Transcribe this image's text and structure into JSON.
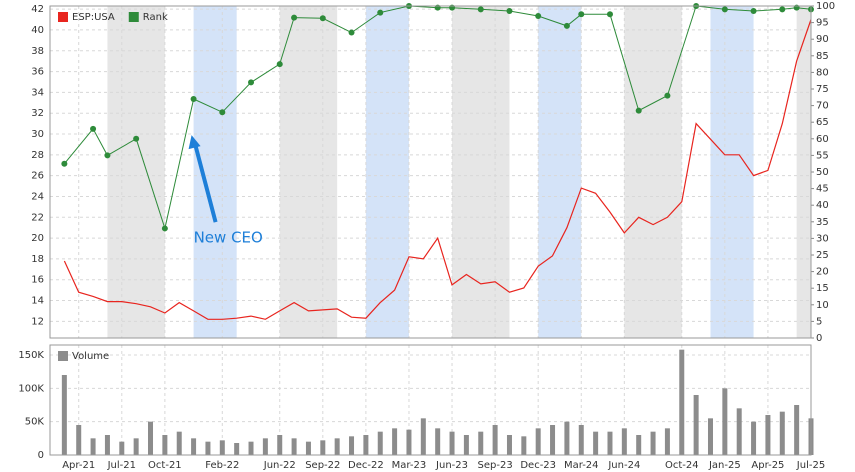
{
  "chart_data": [
    {
      "type": "line",
      "xlim": [
        "2021-02",
        "2025-07"
      ],
      "ylim": [
        10.4,
        42.3
      ],
      "yticks": [
        12,
        14,
        16,
        18,
        20,
        22,
        24,
        26,
        28,
        30,
        32,
        34,
        36,
        38,
        40,
        42
      ],
      "y2lim": [
        0,
        100
      ],
      "y2ticks": [
        0,
        5,
        10,
        15,
        20,
        25,
        30,
        35,
        40,
        45,
        50,
        55,
        60,
        65,
        70,
        75,
        80,
        85,
        90,
        95,
        100
      ],
      "grid": true,
      "legend": "top-left",
      "bands": [
        {
          "start": "2021-06",
          "end": "2021-10",
          "color": "#e6e6e6"
        },
        {
          "start": "2021-12",
          "end": "2022-03",
          "color": "#d4e3f8"
        },
        {
          "start": "2022-06",
          "end": "2022-10",
          "color": "#e6e6e6"
        },
        {
          "start": "2022-12",
          "end": "2023-03",
          "color": "#d4e3f8"
        },
        {
          "start": "2023-06",
          "end": "2023-10",
          "color": "#e6e6e6"
        },
        {
          "start": "2023-12",
          "end": "2024-03",
          "color": "#d4e3f8"
        },
        {
          "start": "2024-06",
          "end": "2024-10",
          "color": "#e6e6e6"
        },
        {
          "start": "2024-12",
          "end": "2025-03",
          "color": "#d4e3f8"
        },
        {
          "start": "2025-06",
          "end": "2025-07",
          "color": "#e6e6e6"
        }
      ],
      "annotations": [
        {
          "text": "New CEO",
          "x": "2021-12",
          "y": 20,
          "color": "#1e7fd8"
        }
      ],
      "series": [
        {
          "name": "ESP:USA",
          "color": "#e8251f",
          "axis": "y",
          "x": [
            "2021-03",
            "2021-04",
            "2021-05",
            "2021-06",
            "2021-07",
            "2021-08",
            "2021-09",
            "2021-10",
            "2021-11",
            "2021-12",
            "2022-01",
            "2022-02",
            "2022-03",
            "2022-04",
            "2022-05",
            "2022-06",
            "2022-07",
            "2022-08",
            "2022-09",
            "2022-10",
            "2022-11",
            "2022-12",
            "2023-01",
            "2023-02",
            "2023-03",
            "2023-04",
            "2023-05",
            "2023-06",
            "2023-07",
            "2023-08",
            "2023-09",
            "2023-10",
            "2023-11",
            "2023-12",
            "2024-01",
            "2024-02",
            "2024-03",
            "2024-04",
            "2024-05",
            "2024-06",
            "2024-07",
            "2024-08",
            "2024-09",
            "2024-10",
            "2024-11",
            "2024-12",
            "2025-01",
            "2025-02",
            "2025-03",
            "2025-04",
            "2025-05",
            "2025-06",
            "2025-07"
          ],
          "values": [
            17.8,
            14.8,
            14.4,
            13.9,
            13.9,
            13.7,
            13.4,
            12.8,
            13.8,
            13.0,
            12.2,
            12.2,
            12.3,
            12.5,
            12.2,
            13.0,
            13.8,
            13.0,
            13.1,
            13.2,
            12.4,
            12.3,
            13.8,
            15.0,
            18.2,
            18.0,
            20.0,
            15.5,
            16.5,
            15.6,
            15.8,
            14.8,
            15.2,
            17.3,
            18.3,
            21.0,
            24.8,
            24.3,
            22.5,
            20.5,
            22.0,
            21.3,
            22.0,
            23.5,
            31.0,
            29.5,
            28.0,
            28.0,
            26.0,
            26.5,
            31.0,
            37.0,
            41.0
          ]
        },
        {
          "name": "Rank",
          "color": "#2e8b3a",
          "axis": "y2",
          "x": [
            "2021-03",
            "2021-05",
            "2021-06",
            "2021-08",
            "2021-10",
            "2021-12",
            "2022-02",
            "2022-04",
            "2022-06",
            "2022-07",
            "2022-09",
            "2022-11",
            "2023-01",
            "2023-03",
            "2023-05",
            "2023-06",
            "2023-08",
            "2023-10",
            "2023-12",
            "2024-02",
            "2024-03",
            "2024-05",
            "2024-07",
            "2024-09",
            "2024-11",
            "2025-01",
            "2025-03",
            "2025-05",
            "2025-06",
            "2025-07"
          ],
          "values": [
            52.5,
            63,
            55,
            60,
            33,
            72,
            68,
            77,
            82.5,
            96.5,
            96.3,
            92,
            98,
            100,
            99.5,
            99.5,
            99,
            98.5,
            97,
            94,
            97.5,
            97.5,
            68.5,
            73,
            100,
            99,
            98.5,
            99,
            99.5,
            99
          ]
        }
      ]
    },
    {
      "type": "bar",
      "xlim": [
        "2021-02",
        "2025-07"
      ],
      "ylim": [
        0,
        165000
      ],
      "yticks": [
        0,
        {
          "value": 50000,
          "label": "50K"
        },
        {
          "value": 100000,
          "label": "100K"
        },
        {
          "value": 150000,
          "label": "150K"
        }
      ],
      "xticks": [
        {
          "value": "2021-04",
          "label": "Apr-21"
        },
        {
          "value": "2021-07",
          "label": "Jul-21"
        },
        {
          "value": "2021-10",
          "label": "Oct-21"
        },
        {
          "value": "2022-02",
          "label": "Feb-22"
        },
        {
          "value": "2022-06",
          "label": "Jun-22"
        },
        {
          "value": "2022-09",
          "label": "Sep-22"
        },
        {
          "value": "2022-12",
          "label": "Dec-22"
        },
        {
          "value": "2023-03",
          "label": "Mar-23"
        },
        {
          "value": "2023-06",
          "label": "Jun-23"
        },
        {
          "value": "2023-09",
          "label": "Sep-23"
        },
        {
          "value": "2023-12",
          "label": "Dec-23"
        },
        {
          "value": "2024-03",
          "label": "Mar-24"
        },
        {
          "value": "2024-06",
          "label": "Jun-24"
        },
        {
          "value": "2024-10",
          "label": "Oct-24"
        },
        {
          "value": "2025-01",
          "label": "Jan-25"
        },
        {
          "value": "2025-04",
          "label": "Apr-25"
        },
        {
          "value": "2025-07",
          "label": "Jul-25"
        }
      ],
      "grid": true,
      "legend": "top-left",
      "series": [
        {
          "name": "Volume",
          "color": "#8c8c8c",
          "x": [
            "2021-03",
            "2021-04",
            "2021-05",
            "2021-06",
            "2021-07",
            "2021-08",
            "2021-09",
            "2021-10",
            "2021-11",
            "2021-12",
            "2022-01",
            "2022-02",
            "2022-03",
            "2022-04",
            "2022-05",
            "2022-06",
            "2022-07",
            "2022-08",
            "2022-09",
            "2022-10",
            "2022-11",
            "2022-12",
            "2023-01",
            "2023-02",
            "2023-03",
            "2023-04",
            "2023-05",
            "2023-06",
            "2023-07",
            "2023-08",
            "2023-09",
            "2023-10",
            "2023-11",
            "2023-12",
            "2024-01",
            "2024-02",
            "2024-03",
            "2024-04",
            "2024-05",
            "2024-06",
            "2024-07",
            "2024-08",
            "2024-09",
            "2024-10",
            "2024-11",
            "2024-12",
            "2025-01",
            "2025-02",
            "2025-03",
            "2025-04",
            "2025-05",
            "2025-06",
            "2025-07"
          ],
          "values": [
            120000,
            45000,
            25000,
            30000,
            20000,
            25000,
            50000,
            30000,
            35000,
            25000,
            20000,
            22000,
            18000,
            20000,
            25000,
            30000,
            25000,
            20000,
            22000,
            25000,
            28000,
            30000,
            35000,
            40000,
            38000,
            55000,
            40000,
            35000,
            30000,
            35000,
            45000,
            30000,
            28000,
            40000,
            45000,
            50000,
            45000,
            35000,
            35000,
            40000,
            30000,
            35000,
            40000,
            158000,
            90000,
            55000,
            100000,
            70000,
            50000,
            60000,
            65000,
            75000,
            55000
          ]
        }
      ]
    }
  ]
}
